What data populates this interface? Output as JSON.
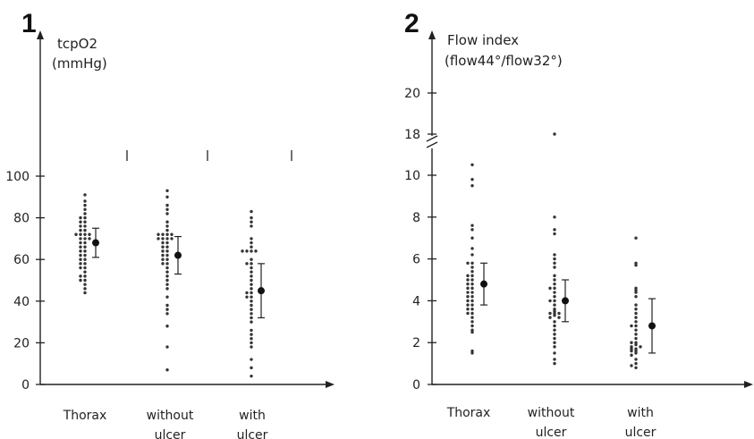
{
  "chart_data": [
    {
      "type": "scatter",
      "panel_label": "1",
      "ylabel_line1": "tcpO2",
      "ylabel_line2": "(mmHg)",
      "categories": [
        "Thorax",
        "without ulcer",
        "with ulcer"
      ],
      "category_lines": [
        [
          "Thorax"
        ],
        [
          "without",
          "ulcer"
        ],
        [
          "with",
          "ulcer"
        ]
      ],
      "yticks": [
        0,
        20,
        40,
        60,
        80,
        100
      ],
      "ylim": [
        0,
        100
      ],
      "points": [
        [
          91,
          88,
          86,
          84,
          82,
          80,
          80,
          78,
          78,
          76,
          76,
          74,
          74,
          72,
          72,
          72,
          72,
          70,
          70,
          70,
          68,
          68,
          66,
          66,
          64,
          64,
          62,
          62,
          60,
          60,
          58,
          58,
          56,
          56,
          54,
          52,
          52,
          50,
          50,
          48,
          46,
          44
        ],
        [
          93,
          90,
          86,
          84,
          82,
          78,
          76,
          74,
          72,
          72,
          72,
          72,
          70,
          70,
          70,
          70,
          68,
          68,
          66,
          66,
          64,
          64,
          62,
          62,
          60,
          60,
          58,
          58,
          56,
          54,
          52,
          50,
          48,
          46,
          42,
          38,
          36,
          34,
          28,
          18,
          7
        ],
        [
          83,
          80,
          78,
          76,
          70,
          68,
          66,
          64,
          64,
          64,
          64,
          60,
          58,
          58,
          56,
          54,
          52,
          50,
          48,
          46,
          44,
          44,
          42,
          42,
          40,
          38,
          36,
          34,
          32,
          30,
          26,
          24,
          22,
          20,
          18,
          12,
          8,
          4
        ]
      ],
      "mean": [
        68,
        62,
        45
      ],
      "sd": [
        7,
        9,
        13
      ]
    },
    {
      "type": "scatter",
      "panel_label": "2",
      "ylabel_line1": "Flow index",
      "ylabel_line2": "(flow44°/flow32°)",
      "categories": [
        "Thorax",
        "without ulcer",
        "with ulcer"
      ],
      "category_lines": [
        [
          "Thorax"
        ],
        [
          "without",
          "ulcer"
        ],
        [
          "with",
          "ulcer"
        ]
      ],
      "yticks_lower": [
        0,
        2,
        4,
        6,
        8,
        10
      ],
      "yticks_upper": [
        18,
        20
      ],
      "axis_break": true,
      "ylim": [
        0,
        20
      ],
      "points": [
        [
          10.5,
          9.8,
          9.5,
          7.6,
          7.4,
          7.0,
          6.5,
          6.2,
          5.8,
          5.8,
          5.6,
          5.4,
          5.2,
          5.2,
          5.0,
          5.0,
          4.8,
          4.8,
          4.6,
          4.6,
          4.4,
          4.4,
          4.2,
          4.2,
          4.0,
          4.0,
          3.8,
          3.8,
          3.6,
          3.6,
          3.4,
          3.4,
          3.2,
          3.0,
          2.8,
          2.6,
          2.5,
          1.6,
          1.5
        ],
        [
          18.0,
          8.0,
          7.4,
          7.2,
          6.2,
          6.0,
          5.8,
          5.6,
          5.2,
          5.0,
          4.8,
          4.6,
          4.6,
          4.4,
          4.2,
          4.0,
          4.0,
          3.8,
          3.6,
          3.5,
          3.4,
          3.4,
          3.4,
          3.3,
          3.2,
          3.2,
          3.0,
          2.8,
          2.6,
          2.4,
          2.2,
          2.0,
          1.8,
          1.5,
          1.2,
          1.0
        ],
        [
          7.0,
          5.8,
          5.7,
          4.6,
          4.5,
          4.4,
          4.2,
          3.8,
          3.6,
          3.4,
          3.2,
          3.0,
          2.8,
          2.8,
          2.6,
          2.4,
          2.2,
          2.0,
          2.0,
          1.9,
          1.8,
          1.8,
          1.7,
          1.7,
          1.6,
          1.6,
          1.5,
          1.4,
          1.2,
          1.0,
          0.9,
          0.8
        ]
      ],
      "mean": [
        4.8,
        4.0,
        2.8
      ],
      "sd": [
        1.0,
        1.0,
        1.3
      ]
    }
  ]
}
